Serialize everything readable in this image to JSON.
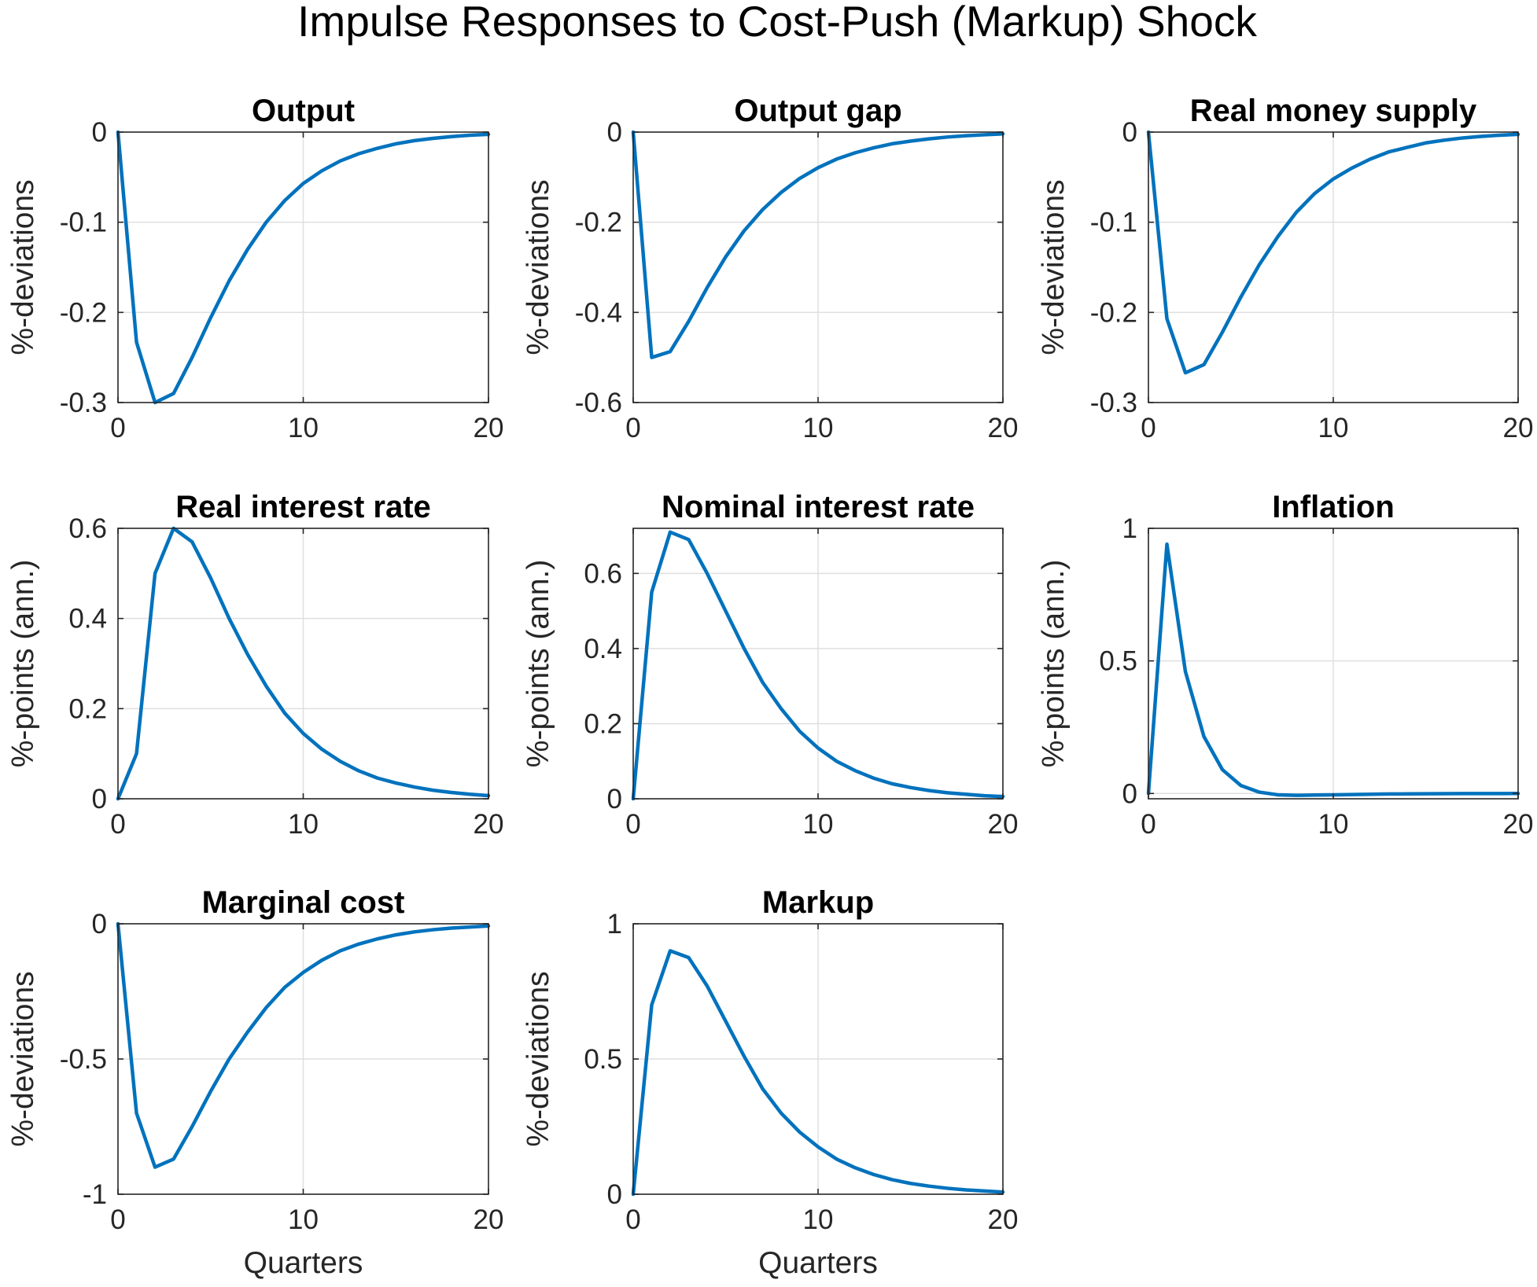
{
  "figure": {
    "title": "Impulse Responses to Cost-Push (Markup) Shock"
  },
  "colors": {
    "line": "#0072BD",
    "grid": "#dfdfdf",
    "axis": "#262626"
  },
  "chart_data": [
    {
      "type": "line",
      "title": "Output",
      "xlabel": "",
      "ylabel": "%-deviations",
      "xlim": [
        0,
        20
      ],
      "ylim": [
        -0.3,
        0
      ],
      "xticks": [
        0,
        10,
        20
      ],
      "yticks": [
        -0.3,
        -0.2,
        -0.1,
        0
      ],
      "ytick_labels": [
        "-0.3",
        "-0.2",
        "-0.1",
        "0"
      ],
      "grid": true,
      "x": [
        0,
        1,
        2,
        3,
        4,
        5,
        6,
        7,
        8,
        9,
        10,
        11,
        12,
        13,
        14,
        15,
        16,
        17,
        18,
        19,
        20
      ],
      "y": [
        0,
        -0.233,
        -0.3,
        -0.29,
        -0.25,
        -0.206,
        -0.165,
        -0.13,
        -0.1,
        -0.076,
        -0.057,
        -0.043,
        -0.032,
        -0.024,
        -0.018,
        -0.013,
        -0.0095,
        -0.007,
        -0.005,
        -0.0035,
        -0.0025
      ]
    },
    {
      "type": "line",
      "title": "Output gap",
      "xlabel": "",
      "ylabel": "%-deviations",
      "xlim": [
        0,
        20
      ],
      "ylim": [
        -0.6,
        0
      ],
      "xticks": [
        0,
        10,
        20
      ],
      "yticks": [
        -0.6,
        -0.4,
        -0.2,
        0
      ],
      "ytick_labels": [
        "-0.6",
        "-0.4",
        "-0.2",
        "0"
      ],
      "grid": true,
      "x": [
        0,
        1,
        2,
        3,
        4,
        5,
        6,
        7,
        8,
        9,
        10,
        11,
        12,
        13,
        14,
        15,
        16,
        17,
        18,
        19,
        20
      ],
      "y": [
        0,
        -0.5,
        -0.487,
        -0.42,
        -0.345,
        -0.277,
        -0.219,
        -0.172,
        -0.134,
        -0.103,
        -0.079,
        -0.06,
        -0.046,
        -0.035,
        -0.026,
        -0.02,
        -0.015,
        -0.011,
        -0.008,
        -0.006,
        -0.004
      ]
    },
    {
      "type": "line",
      "title": "Real money supply",
      "xlabel": "",
      "ylabel": "%-deviations",
      "xlim": [
        0,
        20
      ],
      "ylim": [
        -0.3,
        0
      ],
      "xticks": [
        0,
        10,
        20
      ],
      "yticks": [
        -0.3,
        -0.2,
        -0.1,
        0
      ],
      "ytick_labels": [
        "-0.3",
        "-0.2",
        "-0.1",
        "0"
      ],
      "grid": true,
      "x": [
        0,
        1,
        2,
        3,
        4,
        5,
        6,
        7,
        8,
        9,
        10,
        11,
        12,
        13,
        14,
        15,
        16,
        17,
        18,
        19,
        20
      ],
      "y": [
        0,
        -0.207,
        -0.267,
        -0.258,
        -0.222,
        -0.183,
        -0.147,
        -0.116,
        -0.089,
        -0.068,
        -0.052,
        -0.04,
        -0.03,
        -0.022,
        -0.017,
        -0.012,
        -0.009,
        -0.0065,
        -0.0048,
        -0.0035,
        -0.0025
      ]
    },
    {
      "type": "line",
      "title": "Real interest rate",
      "xlabel": "",
      "ylabel": "%-points (ann.)",
      "xlim": [
        0,
        20
      ],
      "ylim": [
        0,
        0.6
      ],
      "xticks": [
        0,
        10,
        20
      ],
      "yticks": [
        0,
        0.2,
        0.4,
        0.6
      ],
      "ytick_labels": [
        "0",
        "0.2",
        "0.4",
        "0.6"
      ],
      "grid": true,
      "x": [
        0,
        1,
        2,
        3,
        4,
        5,
        6,
        7,
        8,
        9,
        10,
        11,
        12,
        13,
        14,
        15,
        16,
        17,
        18,
        19,
        20
      ],
      "y": [
        0,
        0.1,
        0.5,
        0.6,
        0.57,
        0.49,
        0.4,
        0.32,
        0.25,
        0.19,
        0.145,
        0.11,
        0.083,
        0.062,
        0.046,
        0.035,
        0.026,
        0.019,
        0.014,
        0.01,
        0.007
      ]
    },
    {
      "type": "line",
      "title": "Nominal interest rate",
      "xlabel": "",
      "ylabel": "%-points (ann.)",
      "xlim": [
        0,
        20
      ],
      "ylim": [
        0,
        0.72
      ],
      "xticks": [
        0,
        10,
        20
      ],
      "yticks": [
        0,
        0.2,
        0.4,
        0.6
      ],
      "ytick_labels": [
        "0",
        "0.2",
        "0.4",
        "0.6"
      ],
      "grid": true,
      "x": [
        0,
        1,
        2,
        3,
        4,
        5,
        6,
        7,
        8,
        9,
        10,
        11,
        12,
        13,
        14,
        15,
        16,
        17,
        18,
        19,
        20
      ],
      "y": [
        0,
        0.55,
        0.71,
        0.69,
        0.6,
        0.5,
        0.4,
        0.31,
        0.24,
        0.18,
        0.135,
        0.1,
        0.075,
        0.055,
        0.04,
        0.03,
        0.022,
        0.016,
        0.012,
        0.008,
        0.006
      ]
    },
    {
      "type": "line",
      "title": "Inflation",
      "xlabel": "",
      "ylabel": "%-points (ann.)",
      "xlim": [
        0,
        20
      ],
      "ylim": [
        -0.02,
        1
      ],
      "xticks": [
        0,
        10,
        20
      ],
      "yticks": [
        0,
        0.5,
        1
      ],
      "ytick_labels": [
        "0",
        "0.5",
        "1"
      ],
      "grid": true,
      "x": [
        0,
        1,
        2,
        3,
        4,
        5,
        6,
        7,
        8,
        9,
        10,
        11,
        12,
        13,
        14,
        15,
        16,
        17,
        18,
        19,
        20
      ],
      "y": [
        0,
        0.94,
        0.46,
        0.215,
        0.09,
        0.03,
        0.005,
        -0.005,
        -0.007,
        -0.006,
        -0.005,
        -0.004,
        -0.003,
        -0.002,
        -0.0015,
        -0.001,
        -0.0007,
        -0.0005,
        -0.0003,
        -0.0002,
        -0.0001
      ]
    },
    {
      "type": "line",
      "title": "Marginal cost",
      "xlabel": "Quarters",
      "ylabel": "%-deviations",
      "xlim": [
        0,
        20
      ],
      "ylim": [
        -1,
        0
      ],
      "xticks": [
        0,
        10,
        20
      ],
      "yticks": [
        -1,
        -0.5,
        0
      ],
      "ytick_labels": [
        "-1",
        "-0.5",
        "0"
      ],
      "grid": true,
      "x": [
        0,
        1,
        2,
        3,
        4,
        5,
        6,
        7,
        8,
        9,
        10,
        11,
        12,
        13,
        14,
        15,
        16,
        17,
        18,
        19,
        20
      ],
      "y": [
        0,
        -0.7,
        -0.9,
        -0.87,
        -0.75,
        -0.62,
        -0.5,
        -0.4,
        -0.31,
        -0.235,
        -0.18,
        -0.135,
        -0.1,
        -0.075,
        -0.056,
        -0.041,
        -0.03,
        -0.022,
        -0.016,
        -0.012,
        -0.008
      ]
    },
    {
      "type": "line",
      "title": "Markup",
      "xlabel": "Quarters",
      "ylabel": "%-deviations",
      "xlim": [
        0,
        20
      ],
      "ylim": [
        0,
        1
      ],
      "xticks": [
        0,
        10,
        20
      ],
      "yticks": [
        0,
        0.5,
        1
      ],
      "ytick_labels": [
        "0",
        "0.5",
        "1"
      ],
      "grid": true,
      "x": [
        0,
        1,
        2,
        3,
        4,
        5,
        6,
        7,
        8,
        9,
        10,
        11,
        12,
        13,
        14,
        15,
        16,
        17,
        18,
        19,
        20
      ],
      "y": [
        0,
        0.7,
        0.9,
        0.875,
        0.77,
        0.64,
        0.51,
        0.39,
        0.3,
        0.23,
        0.175,
        0.13,
        0.098,
        0.073,
        0.054,
        0.04,
        0.03,
        0.022,
        0.016,
        0.012,
        0.008
      ]
    }
  ]
}
